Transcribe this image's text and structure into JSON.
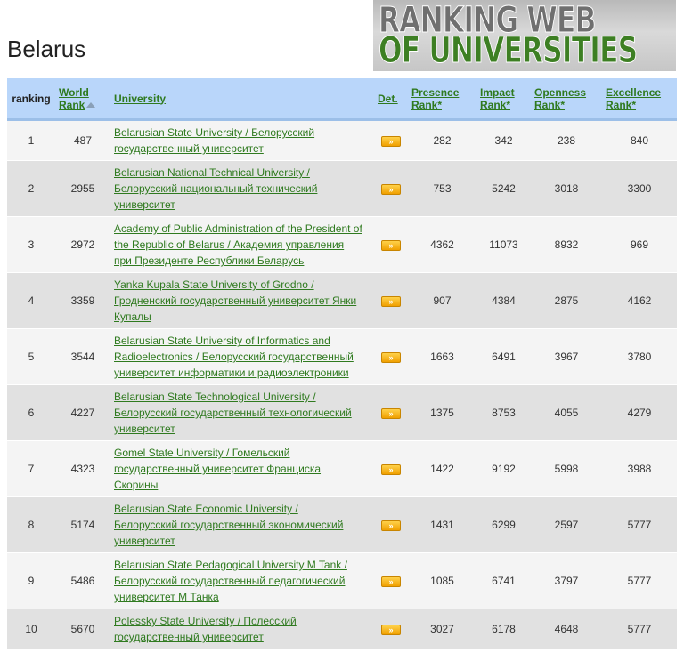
{
  "page": {
    "country": "Belarus",
    "logo": {
      "line1": "RANKING WEB",
      "line2": "OF UNIVERSITIES"
    }
  },
  "table": {
    "headers": {
      "ranking": "ranking",
      "world_rank": "World Rank",
      "university": "University",
      "det": "Det.",
      "presence": "Presence Rank*",
      "impact": "Impact Rank*",
      "openness": "Openness Rank*",
      "excellence": "Excellence Rank*"
    },
    "det_glyph": "»",
    "rows": [
      {
        "ranking": "1",
        "world": "487",
        "university": "Belarusian State University / Белорусский государственный университет",
        "presence": "282",
        "impact": "342",
        "openness": "238",
        "excellence": "840"
      },
      {
        "ranking": "2",
        "world": "2955",
        "university": "Belarusian National Technical University / Белорусский национальный технический университет",
        "presence": "753",
        "impact": "5242",
        "openness": "3018",
        "excellence": "3300"
      },
      {
        "ranking": "3",
        "world": "2972",
        "university": "Academy of Public Administration of the President of the Republic of Belarus / Академия управления при Президенте Республики Беларусь",
        "presence": "4362",
        "impact": "11073",
        "openness": "8932",
        "excellence": "969"
      },
      {
        "ranking": "4",
        "world": "3359",
        "university": "Yanka Kupala State University of Grodno / Гродненский государственный университет Янки Купалы",
        "presence": "907",
        "impact": "4384",
        "openness": "2875",
        "excellence": "4162"
      },
      {
        "ranking": "5",
        "world": "3544",
        "university": "Belarusian State University of Informatics and Radioelectronics / Белорусский государственный университет информатики и радиоэлектроники",
        "presence": "1663",
        "impact": "6491",
        "openness": "3967",
        "excellence": "3780"
      },
      {
        "ranking": "6",
        "world": "4227",
        "university": "Belarusian State Technological University / Белорусский государственный технологический университет",
        "presence": "1375",
        "impact": "8753",
        "openness": "4055",
        "excellence": "4279"
      },
      {
        "ranking": "7",
        "world": "4323",
        "university": "Gomel State University / Гомельский государственный университет Франциска Скорины",
        "presence": "1422",
        "impact": "9192",
        "openness": "5998",
        "excellence": "3988"
      },
      {
        "ranking": "8",
        "world": "5174",
        "university": "Belarusian State Economic University / Белорусский государственный экономический университет",
        "presence": "1431",
        "impact": "6299",
        "openness": "2597",
        "excellence": "5777"
      },
      {
        "ranking": "9",
        "world": "5486",
        "university": "Belarusian State Pedagogical University M Tank / Белорусский государственный педагогический университет М Танка",
        "presence": "1085",
        "impact": "6741",
        "openness": "3797",
        "excellence": "5777"
      },
      {
        "ranking": "10",
        "world": "5670",
        "university": "Polessky State University / Полесский государственный университет",
        "presence": "3027",
        "impact": "6178",
        "openness": "4648",
        "excellence": "5777"
      }
    ]
  }
}
